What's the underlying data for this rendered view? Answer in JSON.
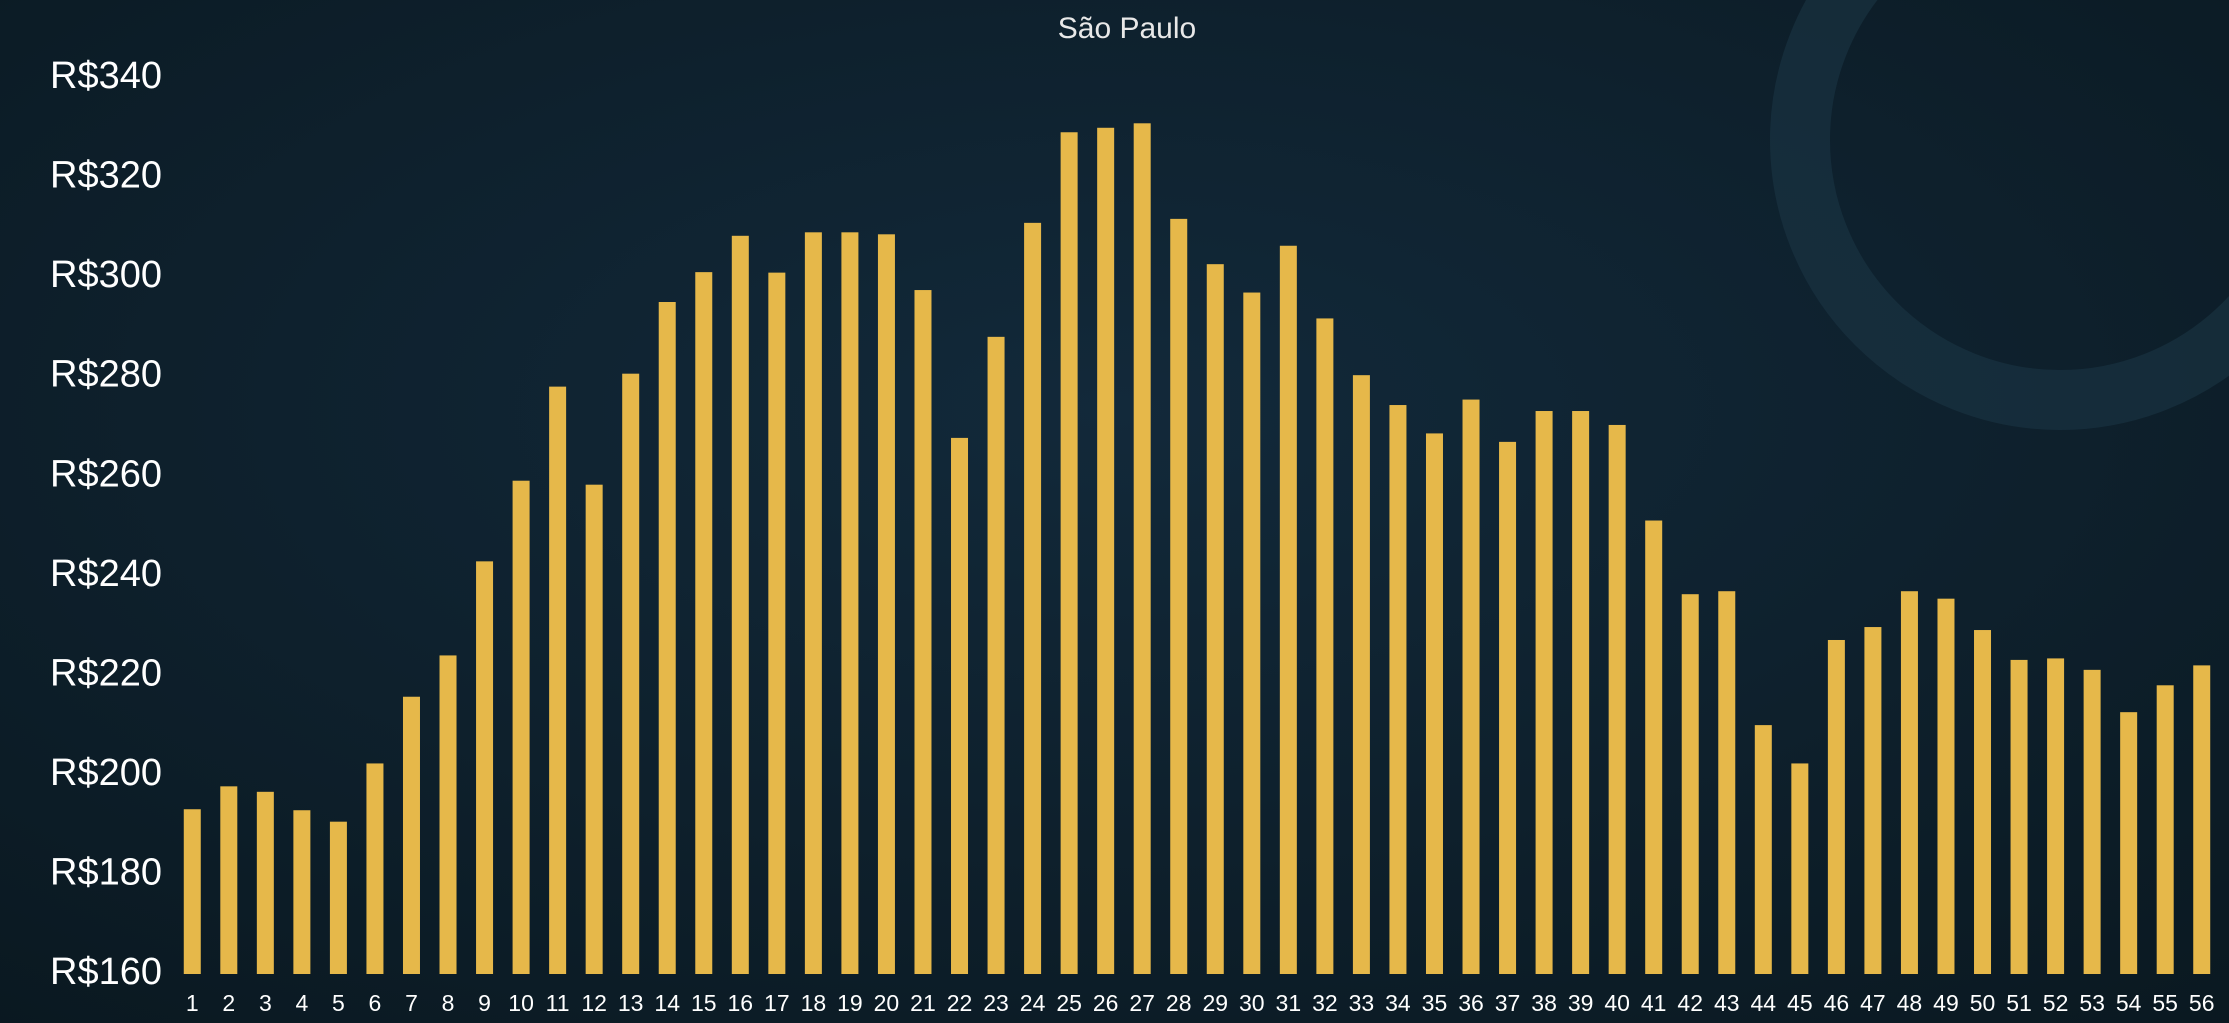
{
  "chart_data": {
    "type": "bar",
    "title": "São Paulo",
    "categories": [
      "1",
      "2",
      "3",
      "4",
      "5",
      "6",
      "7",
      "8",
      "9",
      "10",
      "11",
      "12",
      "13",
      "14",
      "15",
      "16",
      "17",
      "18",
      "19",
      "20",
      "21",
      "22",
      "23",
      "24",
      "25",
      "26",
      "27",
      "28",
      "29",
      "30",
      "31",
      "32",
      "33",
      "34",
      "35",
      "36",
      "37",
      "38",
      "39",
      "40",
      "41",
      "42",
      "43",
      "44",
      "45",
      "46",
      "47",
      "48",
      "49",
      "50",
      "51",
      "52",
      "53",
      "54",
      "55",
      "56"
    ],
    "values": [
      193.1,
      197.7,
      196.6,
      192.9,
      190.6,
      202.3,
      215.7,
      224,
      242.9,
      259.1,
      278,
      258.3,
      280.6,
      295,
      301,
      308.3,
      300.9,
      309,
      309,
      308.6,
      297.4,
      267.7,
      288,
      310.9,
      329.1,
      330,
      330.9,
      311.7,
      302.6,
      296.9,
      306.3,
      291.7,
      280.3,
      274.3,
      268.6,
      275.4,
      266.9,
      273.1,
      273.1,
      270.3,
      251.1,
      236.3,
      236.9,
      210,
      202.3,
      227.1,
      229.7,
      236.9,
      235.4,
      229.1,
      223.1,
      223.4,
      221.1,
      212.6,
      218,
      222
    ],
    "color": "#e6b84a",
    "ylim": [
      160,
      340
    ],
    "yticks": [
      {
        "value": 160,
        "label": "R$160"
      },
      {
        "value": 180,
        "label": "R$180"
      },
      {
        "value": 200,
        "label": "R$200"
      },
      {
        "value": 220,
        "label": "R$220"
      },
      {
        "value": 240,
        "label": "R$240"
      },
      {
        "value": 260,
        "label": "R$260"
      },
      {
        "value": 280,
        "label": "R$280"
      },
      {
        "value": 300,
        "label": "R$300"
      },
      {
        "value": 320,
        "label": "R$320"
      },
      {
        "value": 340,
        "label": "R$340"
      }
    ],
    "grid": false
  }
}
